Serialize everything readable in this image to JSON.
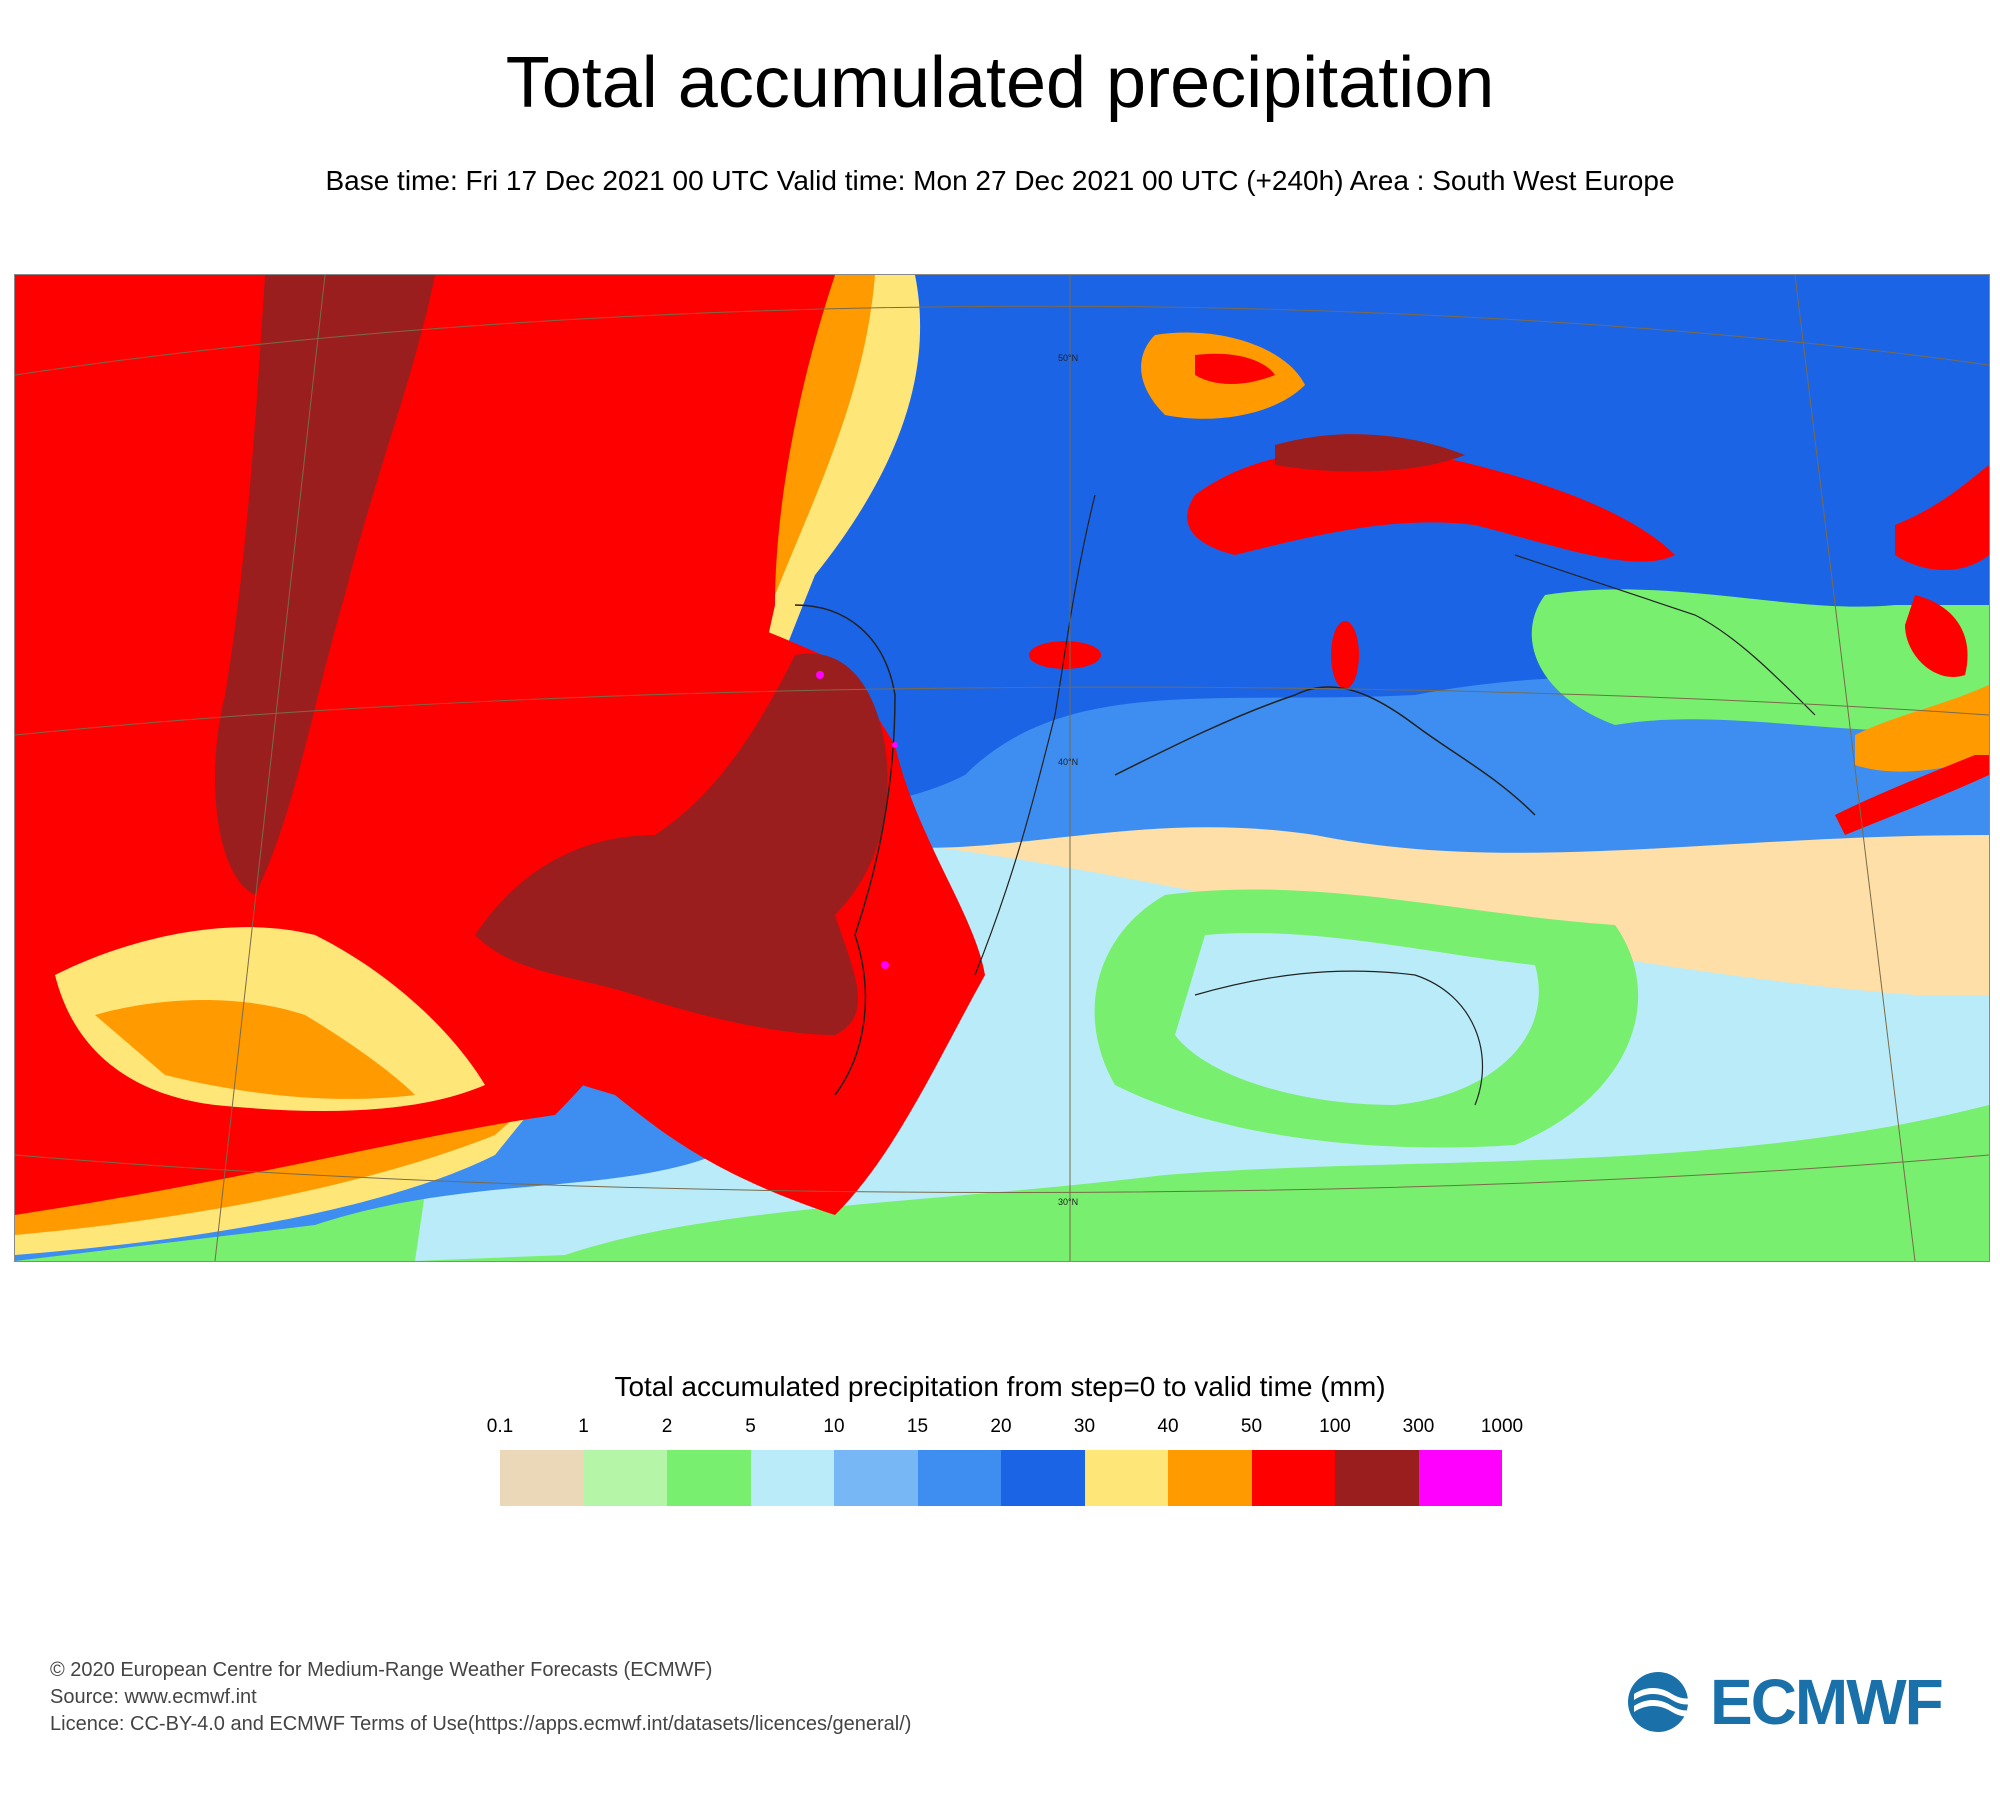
{
  "header": {
    "title": "Total accumulated precipitation",
    "subtitle": "Base time: Fri 17 Dec 2021 00 UTC Valid time: Mon 27 Dec 2021 00 UTC (+240h) Area : South West Europe"
  },
  "map": {
    "lat_labels": [
      "50°N",
      "40°N",
      "30°N"
    ]
  },
  "legend": {
    "title": "Total accumulated precipitation from step=0 to valid time (mm)",
    "ticks": [
      "0.1",
      "1",
      "2",
      "5",
      "10",
      "15",
      "20",
      "30",
      "40",
      "50",
      "100",
      "300",
      "1000"
    ],
    "colors": [
      "#ebd8b9",
      "#b4f5a8",
      "#78ef6e",
      "#b9ecf8",
      "#78b7f5",
      "#3d8ef0",
      "#1c64e6",
      "#ffe678",
      "#ff9b00",
      "#ff0000",
      "#9b1e1e",
      "#ff00ff"
    ]
  },
  "footer": {
    "line1": "© 2020 European Centre for Medium-Range Weather Forecasts (ECMWF)",
    "line2": "Source: www.ecmwf.int",
    "line3": "Licence: CC-BY-4.0 and ECMWF Terms of Use(https://apps.ecmwf.int/datasets/licences/general/)"
  },
  "logo": {
    "text": "ECMWF",
    "color": "#1a70a8"
  }
}
